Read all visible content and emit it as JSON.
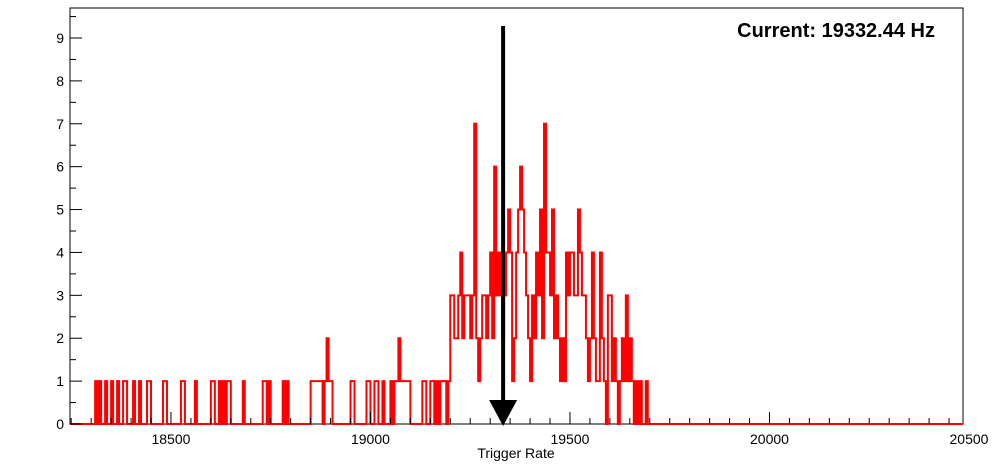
{
  "chart_data": {
    "type": "histogram",
    "xlabel": "Trigger Rate",
    "ylabel": "",
    "title": "",
    "xlim": [
      18250,
      20500
    ],
    "ylim": [
      0,
      9.5
    ],
    "x_ticks": [
      18500,
      19000,
      19500,
      20000,
      20500
    ],
    "y_ticks": [
      0,
      1,
      2,
      3,
      4,
      5,
      6,
      7,
      8,
      9
    ],
    "annotation": {
      "label": "Current: 19332.44 Hz",
      "arrow_x": 19332.44
    },
    "colors": {
      "histogram": "#ff0000",
      "arrow": "#000000"
    },
    "grid": false,
    "series": [
      {
        "bin_width": 5,
        "bins": [
          [
            18310,
            1
          ],
          [
            18320,
            1
          ],
          [
            18335,
            1
          ],
          [
            18350,
            1
          ],
          [
            18365,
            1
          ],
          [
            18380,
            1
          ],
          [
            18385,
            1
          ],
          [
            18405,
            1
          ],
          [
            18420,
            1
          ],
          [
            18440,
            1
          ],
          [
            18445,
            1
          ],
          [
            18480,
            1
          ],
          [
            18485,
            1
          ],
          [
            18525,
            1
          ],
          [
            18530,
            1
          ],
          [
            18560,
            1
          ],
          [
            18600,
            1
          ],
          [
            18605,
            1
          ],
          [
            18620,
            1
          ],
          [
            18630,
            1
          ],
          [
            18640,
            1
          ],
          [
            18645,
            1
          ],
          [
            18680,
            1
          ],
          [
            18730,
            1
          ],
          [
            18735,
            1
          ],
          [
            18745,
            1
          ],
          [
            18780,
            1
          ],
          [
            18790,
            1
          ],
          [
            18850,
            1
          ],
          [
            18855,
            1
          ],
          [
            18860,
            1
          ],
          [
            18865,
            1
          ],
          [
            18870,
            1
          ],
          [
            18875,
            1
          ],
          [
            18885,
            1
          ],
          [
            18890,
            2
          ],
          [
            18895,
            1
          ],
          [
            18900,
            1
          ],
          [
            18950,
            1
          ],
          [
            18955,
            1
          ],
          [
            18990,
            1
          ],
          [
            18995,
            1
          ],
          [
            19010,
            1
          ],
          [
            19015,
            1
          ],
          [
            19030,
            1
          ],
          [
            19050,
            1
          ],
          [
            19060,
            1
          ],
          [
            19065,
            1
          ],
          [
            19070,
            2
          ],
          [
            19075,
            1
          ],
          [
            19080,
            1
          ],
          [
            19085,
            1
          ],
          [
            19090,
            1
          ],
          [
            19095,
            1
          ],
          [
            19130,
            1
          ],
          [
            19135,
            1
          ],
          [
            19150,
            1
          ],
          [
            19155,
            1
          ],
          [
            19165,
            1
          ],
          [
            19175,
            1
          ],
          [
            19180,
            1
          ],
          [
            19185,
            1
          ],
          [
            19195,
            1
          ],
          [
            19200,
            3
          ],
          [
            19205,
            3
          ],
          [
            19210,
            2
          ],
          [
            19215,
            2
          ],
          [
            19220,
            3
          ],
          [
            19225,
            4
          ],
          [
            19230,
            2
          ],
          [
            19235,
            3
          ],
          [
            19240,
            3
          ],
          [
            19245,
            3
          ],
          [
            19250,
            2
          ],
          [
            19255,
            3
          ],
          [
            19260,
            7
          ],
          [
            19265,
            2
          ],
          [
            19270,
            1
          ],
          [
            19275,
            2
          ],
          [
            19280,
            3
          ],
          [
            19285,
            3
          ],
          [
            19290,
            2
          ],
          [
            19295,
            3
          ],
          [
            19300,
            4
          ],
          [
            19305,
            2
          ],
          [
            19310,
            6
          ],
          [
            19315,
            3
          ],
          [
            19320,
            4
          ],
          [
            19325,
            3
          ],
          [
            19330,
            2
          ],
          [
            19335,
            3
          ],
          [
            19340,
            4
          ],
          [
            19345,
            5
          ],
          [
            19350,
            4
          ],
          [
            19355,
            1
          ],
          [
            19360,
            2
          ],
          [
            19365,
            4
          ],
          [
            19370,
            5
          ],
          [
            19375,
            6
          ],
          [
            19380,
            5
          ],
          [
            19385,
            4
          ],
          [
            19390,
            3
          ],
          [
            19395,
            2
          ],
          [
            19400,
            1
          ],
          [
            19405,
            3
          ],
          [
            19410,
            2
          ],
          [
            19415,
            4
          ],
          [
            19420,
            3
          ],
          [
            19425,
            5
          ],
          [
            19430,
            2
          ],
          [
            19435,
            7
          ],
          [
            19440,
            4
          ],
          [
            19445,
            4
          ],
          [
            19450,
            3
          ],
          [
            19455,
            5
          ],
          [
            19460,
            2
          ],
          [
            19465,
            3
          ],
          [
            19470,
            2
          ],
          [
            19475,
            1
          ],
          [
            19480,
            2
          ],
          [
            19485,
            1
          ],
          [
            19490,
            4
          ],
          [
            19495,
            3
          ],
          [
            19500,
            4
          ],
          [
            19505,
            4
          ],
          [
            19510,
            3
          ],
          [
            19515,
            3
          ],
          [
            19520,
            5
          ],
          [
            19525,
            4
          ],
          [
            19530,
            3
          ],
          [
            19535,
            3
          ],
          [
            19540,
            2
          ],
          [
            19545,
            1
          ],
          [
            19550,
            2
          ],
          [
            19555,
            4
          ],
          [
            19560,
            2
          ],
          [
            19565,
            1
          ],
          [
            19570,
            1
          ],
          [
            19575,
            4
          ],
          [
            19580,
            2
          ],
          [
            19585,
            1
          ],
          [
            19590,
            0
          ],
          [
            19595,
            3
          ],
          [
            19600,
            3
          ],
          [
            19605,
            1
          ],
          [
            19610,
            2
          ],
          [
            19615,
            1
          ],
          [
            19620,
            0
          ],
          [
            19625,
            1
          ],
          [
            19630,
            2
          ],
          [
            19635,
            1
          ],
          [
            19640,
            3
          ],
          [
            19645,
            1
          ],
          [
            19650,
            2
          ],
          [
            19655,
            1
          ],
          [
            19660,
            0
          ],
          [
            19665,
            1
          ],
          [
            19670,
            0
          ],
          [
            19675,
            1
          ],
          [
            19690,
            1
          ]
        ]
      }
    ]
  }
}
